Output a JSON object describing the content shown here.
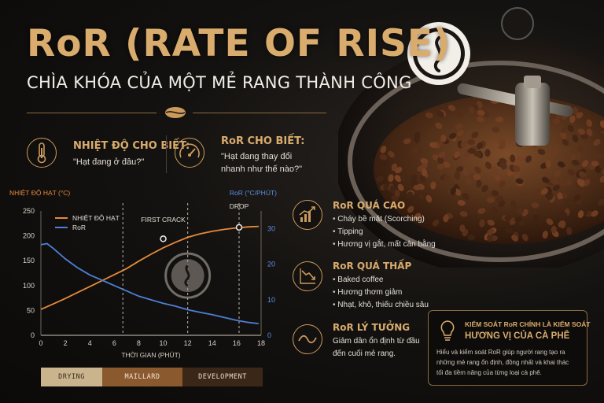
{
  "header": {
    "title": "RoR (RATE OF RISE)",
    "subtitle": "CHÌA KHÓA CỦA MỘT MẺ RANG THÀNH CÔNG"
  },
  "info": [
    {
      "icon": "thermometer-icon",
      "title": "NHIỆT ĐỘ CHO BIẾT:",
      "text": "\"Hạt đang ở đâu?\""
    },
    {
      "icon": "gauge-icon",
      "title": "RoR CHO BIẾT:",
      "text_lines": [
        "\"Hạt đang thay đổi",
        "nhanh như thế nào?\""
      ]
    }
  ],
  "ror_cases": [
    {
      "icon": "rising-chart-icon",
      "title": "RoR QUÁ CAO",
      "items": [
        "Cháy bề mặt (Scorching)",
        "Tipping",
        "Hương vị gắt, mất cân bằng"
      ]
    },
    {
      "icon": "falling-chart-icon",
      "title": "RoR QUÁ THẤP",
      "items": [
        "Baked coffee",
        "Hương thơm giảm",
        "Nhạt, khô, thiếu chiều sâu"
      ]
    },
    {
      "icon": "wave-icon",
      "title": "RoR LÝ TƯỞNG",
      "text_lines": [
        "Giảm dần ổn định từ đầu",
        "đến cuối mẻ rang."
      ]
    }
  ],
  "callout": {
    "icon": "lightbulb-icon",
    "head1": "KIỂM SOÁT RoR CHÍNH LÀ KIỂM SOÁT",
    "head2": "HƯƠNG VỊ CỦA CÀ PHÊ",
    "body_lines": [
      "Hiểu và kiểm soát RoR giúp người rang tạo ra",
      "những mẻ rang ổn định, đồng nhất và khai thác",
      "tối đa tiềm năng của từng loại cà phê."
    ]
  },
  "phases": [
    {
      "label": "DRYING",
      "bg": "#c9b48e",
      "fg": "#3a2d1c"
    },
    {
      "label": "MAILLARD",
      "bg": "#8a5a2e",
      "fg": "#f0e2cc"
    },
    {
      "label": "DEVELOPMENT",
      "bg": "#3b2718",
      "fg": "#e8dccb"
    }
  ],
  "colors": {
    "gold": "#d9ac6e",
    "temp": "#e58a3a",
    "ror": "#4d7fd6"
  },
  "chart_data": {
    "type": "line",
    "xlabel": "THỜI GIAN (PHÚT)",
    "ylabel_left": "NHIỆT ĐỘ HẠT (°C)",
    "ylabel_right": "RoR (°C/PHÚT)",
    "xlim": [
      0,
      18
    ],
    "ylim_left": [
      0,
      250
    ],
    "ylim_right": [
      0,
      35
    ],
    "x_ticks": [
      0,
      2,
      4,
      6,
      8,
      10,
      12,
      14,
      16,
      18
    ],
    "y_ticks_left": [
      0,
      50,
      100,
      150,
      200,
      250
    ],
    "y_ticks_right": [
      0,
      10,
      20,
      30
    ],
    "legend_position": "top-left",
    "phase_lines": [
      6.7,
      12,
      16.2
    ],
    "series": [
      {
        "name": "NHIỆT ĐỘ HẠT",
        "axis": "left",
        "x": [
          0,
          1,
          2,
          3,
          4,
          5,
          6,
          7,
          8,
          9,
          10,
          11,
          12,
          13,
          14,
          15,
          16,
          17,
          17.8
        ],
        "y": [
          52,
          63,
          74,
          86,
          98,
          110,
          122,
          134,
          149,
          163,
          176,
          187,
          197,
          204,
          209,
          213,
          216,
          218,
          219
        ]
      },
      {
        "name": "RoR",
        "axis": "right",
        "x": [
          0,
          0.5,
          1,
          2,
          3,
          4,
          5,
          6,
          7,
          8,
          9,
          10,
          11,
          12,
          13,
          14,
          15,
          16,
          17,
          17.8
        ],
        "y": [
          25.5,
          25.8,
          24.5,
          21.5,
          19,
          17,
          15.5,
          14,
          12.5,
          11,
          10,
          9,
          8.2,
          7.2,
          6.5,
          5.8,
          5,
          4.2,
          3.6,
          3.3
        ]
      }
    ],
    "annotations": [
      {
        "label": "FIRST CRACK",
        "x": 10,
        "y": 194
      },
      {
        "label": "DROP",
        "x": 16.2,
        "y": 217
      }
    ]
  }
}
